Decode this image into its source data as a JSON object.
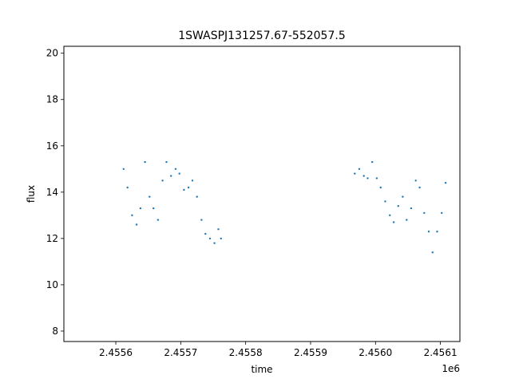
{
  "chart_data": {
    "type": "scatter",
    "title": "1SWASPJ131257.67-552057.5",
    "xlabel": "time",
    "ylabel": "flux",
    "x_offset_label": "1e6",
    "xlim": [
      2.45552,
      2.45613
    ],
    "ylim": [
      7.55,
      20.3
    ],
    "grid": false,
    "marker_color": "#1f77b4",
    "x_ticks": [
      2.4556,
      2.4557,
      2.4558,
      2.4559,
      2.456,
      2.4561
    ],
    "x_tick_labels": [
      "2.4556",
      "2.4557",
      "2.4558",
      "2.4559",
      "2.4560",
      "2.4561"
    ],
    "y_ticks": [
      8,
      10,
      12,
      14,
      16,
      18,
      20
    ],
    "y_tick_labels": [
      "8",
      "10",
      "12",
      "14",
      "16",
      "18",
      "20"
    ],
    "series": [
      {
        "x": [
          2.455612,
          2.455618,
          2.455625,
          2.455632,
          2.455638,
          2.455645,
          2.455652,
          2.455658,
          2.455665,
          2.455672,
          2.455678,
          2.455685,
          2.455692,
          2.455698,
          2.455705,
          2.455712,
          2.455718,
          2.455725,
          2.455732,
          2.455738,
          2.455745,
          2.455752,
          2.455758,
          2.455762,
          2.455968,
          2.455975,
          2.455982,
          2.455988,
          2.455995,
          2.456002,
          2.456008,
          2.456015,
          2.456022,
          2.456028,
          2.456035,
          2.456042,
          2.456048,
          2.456055,
          2.456062,
          2.456068,
          2.456075,
          2.456082,
          2.456088,
          2.456095,
          2.456102,
          2.456108
        ],
        "y": [
          15.0,
          14.2,
          13.0,
          12.6,
          13.3,
          15.3,
          13.8,
          13.3,
          12.8,
          14.5,
          15.3,
          14.7,
          15.0,
          14.8,
          14.1,
          14.2,
          14.5,
          13.8,
          12.8,
          12.2,
          12.0,
          11.8,
          12.4,
          12.0,
          14.8,
          15.0,
          14.7,
          14.6,
          15.3,
          14.6,
          14.2,
          13.6,
          13.0,
          12.7,
          13.4,
          13.8,
          12.8,
          13.3,
          14.5,
          14.2,
          13.1,
          12.3,
          11.4,
          12.3,
          13.1,
          14.4
        ]
      }
    ]
  }
}
